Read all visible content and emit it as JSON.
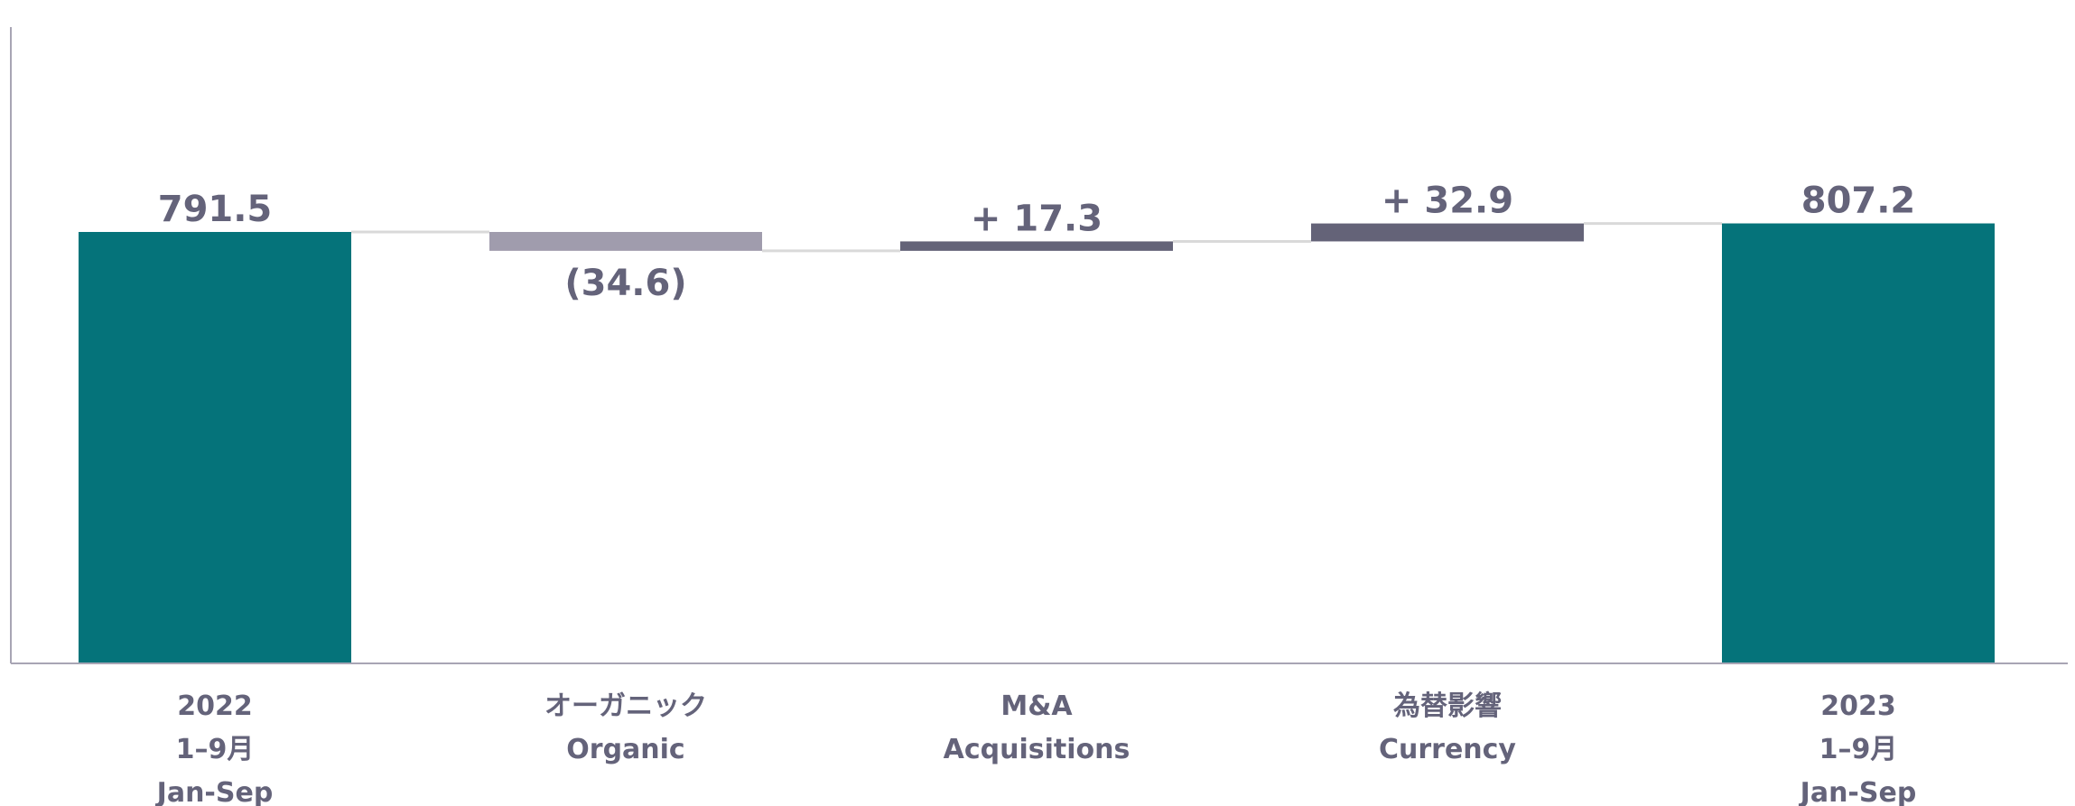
{
  "chart_data": {
    "type": "bar",
    "subtype": "waterfall",
    "categories": [
      [
        "2022",
        "1–9月",
        "Jan-Sep"
      ],
      [
        "オーガニック",
        "Organic"
      ],
      [
        "M&A",
        "Acquisitions"
      ],
      [
        "為替影響",
        "Currency"
      ],
      [
        "2023",
        "1–9月",
        "Jan-Sep"
      ]
    ],
    "values": [
      791.5,
      -34.6,
      17.3,
      32.9,
      807.2
    ],
    "measures": [
      "total",
      "relative",
      "relative",
      "relative",
      "total"
    ],
    "value_labels": [
      "791.5",
      "(34.6)",
      "+ 17.3",
      "+ 32.9",
      "807.2"
    ],
    "ylim": [
      0,
      1000
    ],
    "grid": false,
    "connectors": true,
    "colors": {
      "total": "#05737a",
      "decrease": "#a09cad",
      "increase": "#646378",
      "connector": "#d9d9d9",
      "axis": "#a8a5b4",
      "label": "#64637a"
    }
  }
}
